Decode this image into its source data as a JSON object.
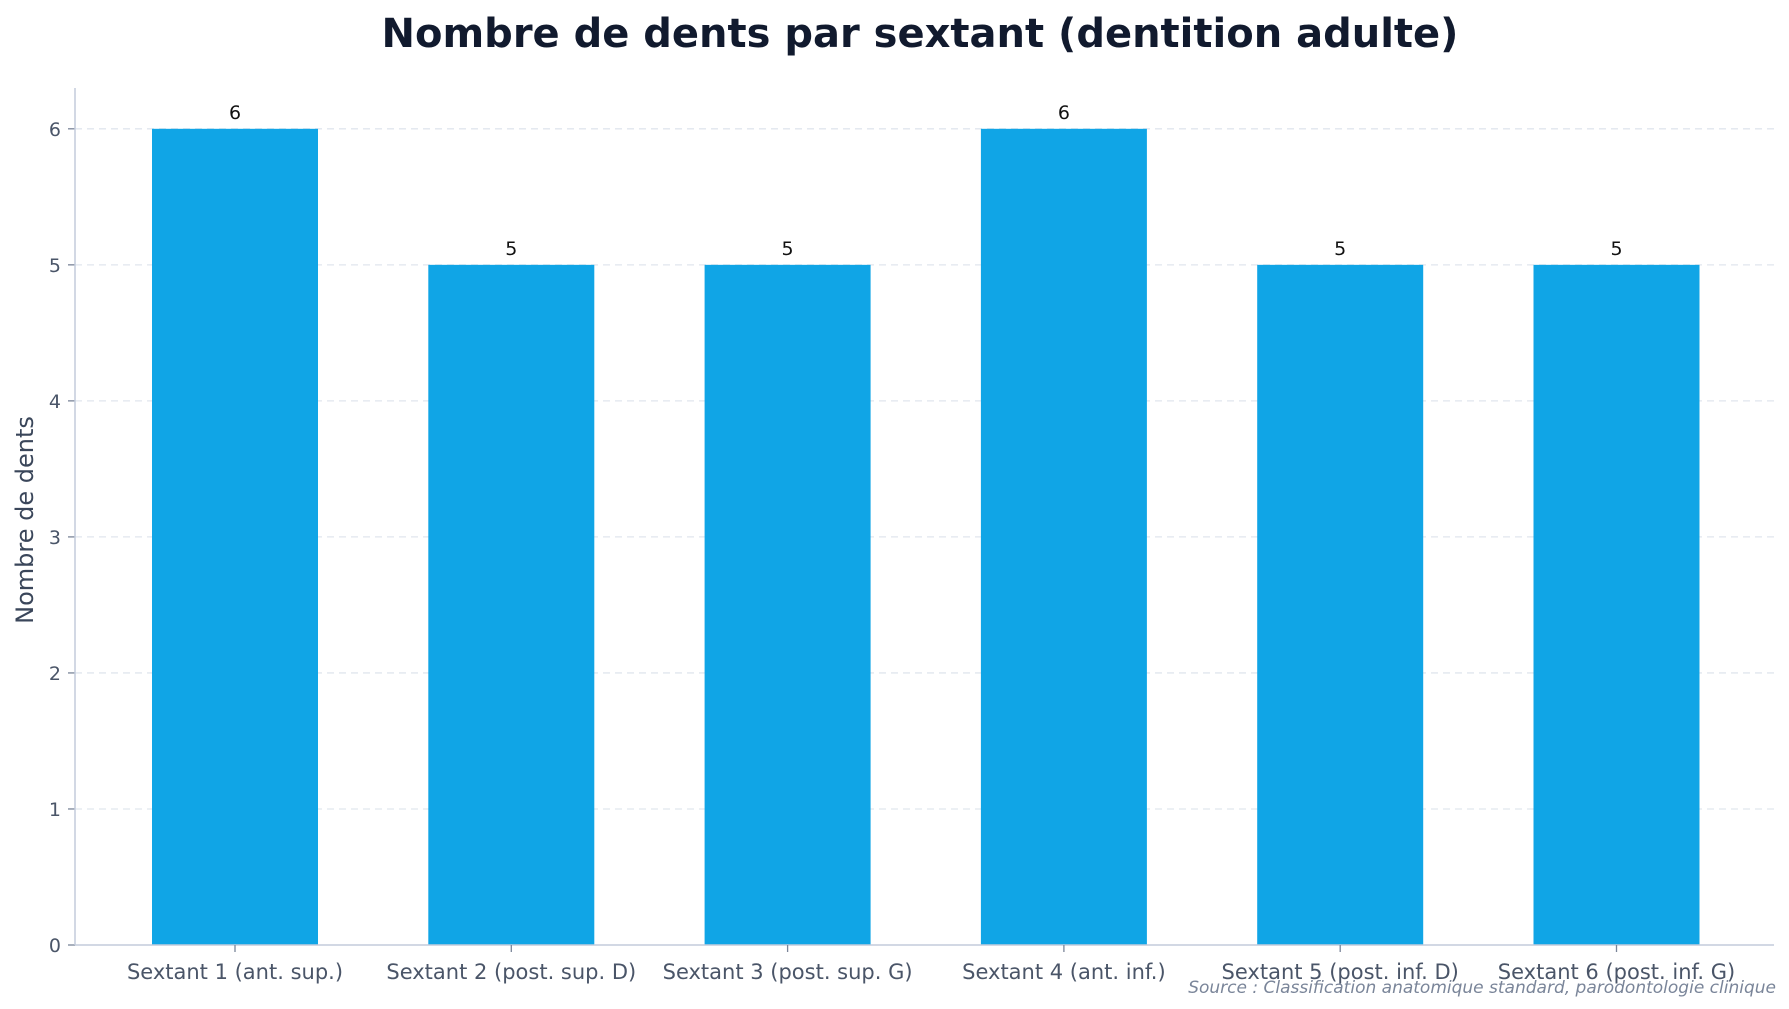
{
  "chart_data": {
    "type": "bar",
    "title": "Nombre de dents par sextant (dentition adulte)",
    "xlabel": "",
    "ylabel": "Nombre de dents",
    "categories": [
      "Sextant 1 (ant. sup.)",
      "Sextant 2 (post. sup. D)",
      "Sextant 3 (post. sup. G)",
      "Sextant 4 (ant. inf.)",
      "Sextant 5 (post. inf. D)",
      "Sextant 6 (post. inf. G)"
    ],
    "values": [
      6,
      5,
      5,
      6,
      5,
      5
    ],
    "data_labels": [
      "6",
      "5",
      "5",
      "6",
      "5",
      "5"
    ],
    "ylim": [
      0,
      6.3
    ],
    "yticks": [
      0,
      1,
      2,
      3,
      4,
      5,
      6
    ],
    "grid": true,
    "bar_color": "#10a5e6",
    "source": "Source : Classification anatomique standard, parodontologie clinique"
  }
}
